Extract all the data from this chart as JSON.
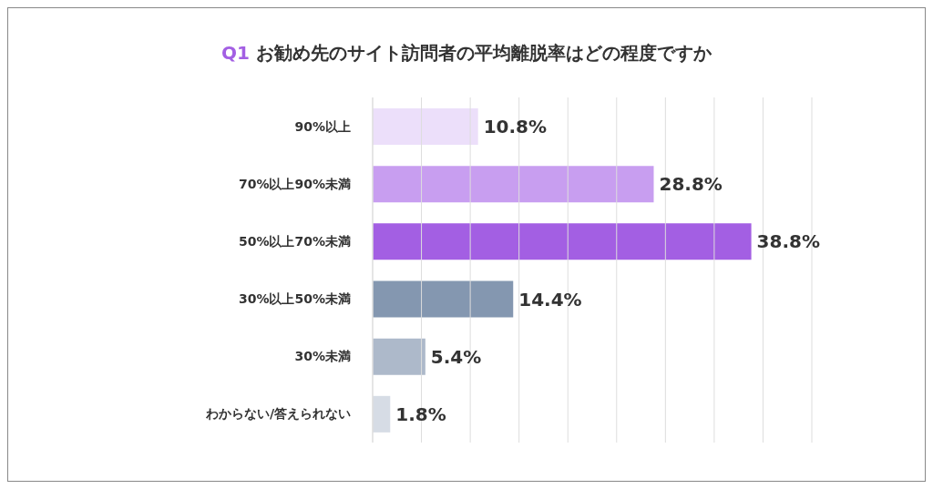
{
  "chart_data": {
    "type": "bar",
    "orientation": "horizontal",
    "title": "Q1 お勧め先のサイト訪問者の平均離脱率はどの程度ですか",
    "categories": [
      "90%以上",
      "70%以上90%未満",
      "50%以上70%未満",
      "30%以上50%未満",
      "30%未満",
      "わからない/答えられない"
    ],
    "values": [
      10.8,
      28.8,
      38.8,
      14.4,
      5.4,
      1.8
    ],
    "colors": [
      "#ecdffa",
      "#c89ef0",
      "#a35fe3",
      "#8497b0",
      "#adb9ca",
      "#d6dce5"
    ],
    "data_labels": true,
    "value_labels": [
      "10.8%",
      "28.8%",
      "38.8%",
      "14.4%",
      "5.4%",
      "1.8%"
    ],
    "xlim": [
      0,
      45
    ],
    "xticks": [
      {
        "value": 0,
        "label": null
      },
      {
        "value": 5,
        "label": null
      },
      {
        "value": 10,
        "label": null
      },
      {
        "value": 15,
        "label": null
      },
      {
        "value": 20,
        "label": null
      },
      {
        "value": 25,
        "label": null
      },
      {
        "value": 30,
        "label": null
      },
      {
        "value": 35,
        "label": null
      },
      {
        "value": 40,
        "label": null
      },
      {
        "value": 45,
        "label": null
      }
    ],
    "grid": "x",
    "tick_labels": "y"
  }
}
